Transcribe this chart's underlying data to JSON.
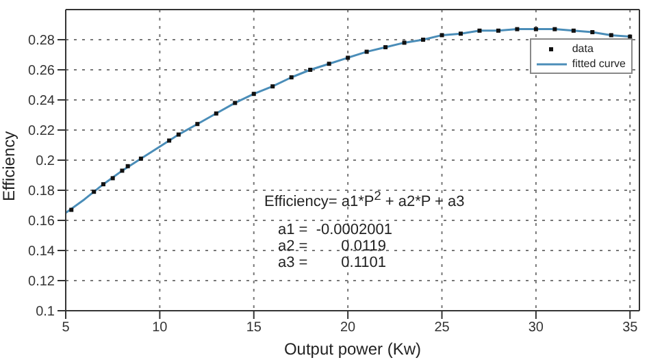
{
  "chart_data": {
    "type": "scatter",
    "xlabel": "Output power (Kw)",
    "ylabel": "Efficiency",
    "xlim": [
      5,
      35.5
    ],
    "ylim": [
      0.1,
      0.3
    ],
    "xticks": [
      5,
      10,
      15,
      20,
      25,
      30,
      35
    ],
    "yticks": [
      0.1,
      0.12,
      0.14,
      0.16,
      0.18,
      0.2,
      0.22,
      0.24,
      0.26,
      0.28
    ],
    "grid": true,
    "legend": "top right",
    "series": [
      {
        "name": "data",
        "marker": "square",
        "color": "#111111",
        "x": [
          5.3,
          6.5,
          7,
          7.5,
          8,
          8.3,
          9,
          10.5,
          11,
          12,
          13,
          14,
          15,
          16,
          17,
          18,
          19,
          20,
          21,
          22,
          23,
          24,
          25,
          26,
          27,
          28,
          29,
          30,
          31,
          32,
          33,
          34,
          35
        ],
        "values": [
          0.167,
          0.179,
          0.184,
          0.188,
          0.193,
          0.196,
          0.201,
          0.213,
          0.217,
          0.224,
          0.231,
          0.238,
          0.244,
          0.249,
          0.255,
          0.26,
          0.264,
          0.268,
          0.272,
          0.275,
          0.278,
          0.28,
          0.283,
          0.284,
          0.286,
          0.286,
          0.287,
          0.287,
          0.287,
          0.286,
          0.285,
          0.283,
          0.282
        ]
      },
      {
        "name": "fitted curve",
        "type": "line",
        "marker": "none",
        "line_style": "solid",
        "color": "#4a8db8",
        "x": [
          5,
          6,
          7,
          8,
          9,
          10,
          11,
          12,
          13,
          14,
          15,
          16,
          17,
          18,
          19,
          20,
          21,
          22,
          23,
          24,
          25,
          26,
          27,
          28,
          29,
          30,
          31,
          32,
          33,
          34,
          35
        ],
        "values": [
          0.165,
          0.174,
          0.184,
          0.193,
          0.201,
          0.209,
          0.217,
          0.224,
          0.231,
          0.238,
          0.244,
          0.249,
          0.255,
          0.26,
          0.264,
          0.268,
          0.272,
          0.275,
          0.278,
          0.28,
          0.283,
          0.284,
          0.286,
          0.286,
          0.287,
          0.287,
          0.287,
          0.286,
          0.285,
          0.283,
          0.282
        ]
      }
    ],
    "annotations": [
      "Efficiency= a1*P$^{2}$ + a2*P + a3",
      "a1 =  -0.0002001",
      "a2 =        0.0119",
      "a3 =        0.1101"
    ]
  }
}
